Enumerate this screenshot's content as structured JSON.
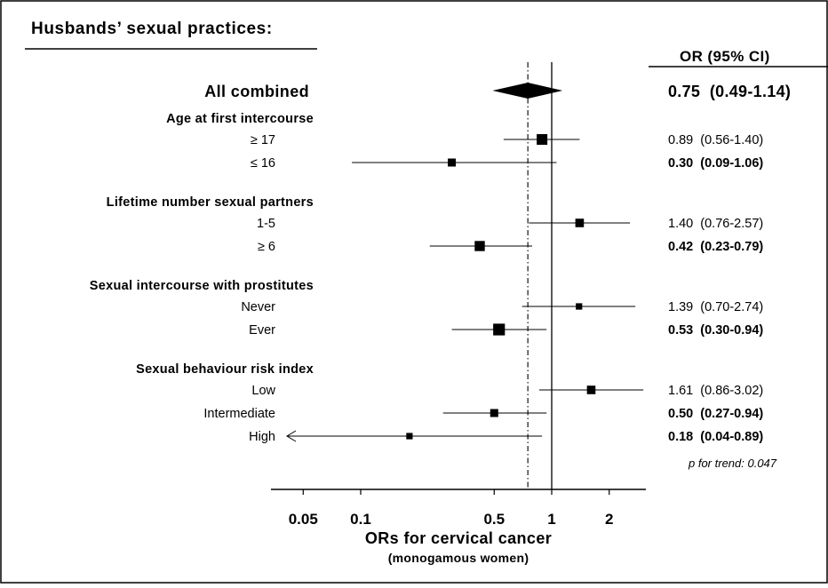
{
  "chart_data": {
    "type": "forest",
    "title": "Husbands’ sexual practices:",
    "column_header": "OR (95% CI)",
    "xlabel": "ORs for cervical cancer",
    "xlabel_sub": "(monogamous women)",
    "x_scale": "log",
    "xlim": [
      0.03,
      3.3
    ],
    "x_ticks": [
      0.05,
      0.1,
      0.5,
      1,
      2
    ],
    "x_tick_labels": [
      "0.05",
      "0.1",
      "0.5",
      "1",
      "2"
    ],
    "reference_line": 1,
    "pooled_line": 0.75,
    "summary": {
      "label": "All combined",
      "or": 0.75,
      "lo": 0.49,
      "hi": 1.14,
      "text": "0.75  (0.49-1.14)",
      "bold": true
    },
    "groups": [
      {
        "title": "Age at first intercourse",
        "rows": [
          {
            "label": "≥ 17",
            "or": 0.89,
            "lo": 0.56,
            "hi": 1.4,
            "weight": 1.0,
            "text": "0.89  (0.56-1.40)",
            "bold": false
          },
          {
            "label": "≤ 16",
            "or": 0.3,
            "lo": 0.09,
            "hi": 1.06,
            "weight": 0.75,
            "text": "0.30  (0.09-1.06)",
            "bold": true
          }
        ]
      },
      {
        "title": "Lifetime number sexual partners",
        "rows": [
          {
            "label": "1-5",
            "or": 1.4,
            "lo": 0.76,
            "hi": 2.57,
            "weight": 0.8,
            "text": "1.40  (0.76-2.57)",
            "bold": false
          },
          {
            "label": "≥ 6",
            "or": 0.42,
            "lo": 0.23,
            "hi": 0.79,
            "weight": 0.95,
            "text": "0.42  (0.23-0.79)",
            "bold": true
          }
        ]
      },
      {
        "title": "Sexual intercourse with prostitutes",
        "rows": [
          {
            "label": "Never",
            "or": 1.39,
            "lo": 0.7,
            "hi": 2.74,
            "weight": 0.6,
            "text": "1.39  (0.70-2.74)",
            "bold": false
          },
          {
            "label": "Ever",
            "or": 0.53,
            "lo": 0.3,
            "hi": 0.94,
            "weight": 1.1,
            "text": "0.53  (0.30-0.94)",
            "bold": true
          }
        ]
      },
      {
        "title": "Sexual behaviour risk index",
        "rows": [
          {
            "label": "Low",
            "or": 1.61,
            "lo": 0.86,
            "hi": 3.02,
            "weight": 0.8,
            "text": "1.61  (0.86-3.02)",
            "bold": false
          },
          {
            "label": "Intermediate",
            "or": 0.5,
            "lo": 0.27,
            "hi": 0.94,
            "weight": 0.75,
            "text": "0.50  (0.27-0.94)",
            "bold": true
          },
          {
            "label": "High",
            "or": 0.18,
            "lo": 0.04,
            "hi": 0.89,
            "weight": 0.6,
            "text": "0.18  (0.04-0.89)",
            "bold": true,
            "arrow_left": true
          }
        ]
      }
    ],
    "footnote": "p for trend: 0.047"
  }
}
